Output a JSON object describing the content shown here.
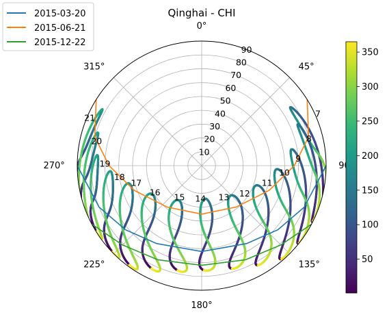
{
  "chart_data": {
    "type": "polar-analemma",
    "title": "Qinghai - CHI",
    "theta_direction": "clockwise",
    "theta_zero": "N",
    "angle_tick_labels": [
      "0°",
      "45°",
      "90°",
      "135°",
      "180°",
      "225°",
      "270°",
      "315°"
    ],
    "radial_tick_labels": [
      "10",
      "20",
      "30",
      "40",
      "50",
      "60",
      "70",
      "80",
      "90"
    ],
    "rlim": [
      0,
      90
    ],
    "grid": true,
    "legend": {
      "position": "top-left",
      "entries": [
        {
          "label": "2015-03-20",
          "color": "#1f77b4"
        },
        {
          "label": "2015-06-21",
          "color": "#ff7f0e"
        },
        {
          "label": "2015-12-22",
          "color": "#2ca02c"
        }
      ]
    },
    "day_paths": [
      {
        "name": "2015-03-20",
        "color": "#1f77b4",
        "points": [
          [
            90,
            90
          ],
          [
            112,
            80
          ],
          [
            130,
            72
          ],
          [
            150,
            65
          ],
          [
            180,
            62
          ],
          [
            210,
            65
          ],
          [
            230,
            72
          ],
          [
            248,
            80
          ],
          [
            270,
            90
          ]
        ]
      },
      {
        "name": "2015-06-21",
        "color": "#ff7f0e",
        "points": [
          [
            58,
            90
          ],
          [
            75,
            80
          ],
          [
            90,
            67
          ],
          [
            110,
            52
          ],
          [
            140,
            39
          ],
          [
            180,
            35
          ],
          [
            220,
            39
          ],
          [
            250,
            52
          ],
          [
            270,
            67
          ],
          [
            285,
            80
          ],
          [
            302,
            90
          ]
        ]
      },
      {
        "name": "2015-12-22",
        "color": "#2ca02c",
        "points": [
          [
            118,
            90
          ],
          [
            135,
            81
          ],
          [
            155,
            75
          ],
          [
            180,
            72
          ],
          [
            205,
            75
          ],
          [
            225,
            81
          ],
          [
            242,
            90
          ]
        ]
      }
    ],
    "hour_labels": [
      {
        "hour": "7",
        "az": 66,
        "alt": 92
      },
      {
        "hour": "8",
        "az": 76,
        "alt": 80
      },
      {
        "hour": "9",
        "az": 86,
        "alt": 70
      },
      {
        "hour": "10",
        "az": 95,
        "alt": 60
      },
      {
        "hour": "11",
        "az": 105,
        "alt": 49
      },
      {
        "hour": "12",
        "az": 123,
        "alt": 37
      },
      {
        "hour": "13",
        "az": 145,
        "alt": 28
      },
      {
        "hour": "14",
        "az": 182,
        "alt": 24
      },
      {
        "hour": "15",
        "az": 215,
        "alt": 28
      },
      {
        "hour": "16",
        "az": 240,
        "alt": 39
      },
      {
        "hour": "17",
        "az": 255,
        "alt": 49
      },
      {
        "hour": "18",
        "az": 262,
        "alt": 60
      },
      {
        "hour": "19",
        "az": 271,
        "alt": 70
      },
      {
        "hour": "20",
        "az": 283,
        "alt": 78
      },
      {
        "hour": "21",
        "az": 293,
        "alt": 88
      }
    ],
    "analemmas": [
      {
        "hour": "8",
        "top": [
          60,
          76
        ],
        "bottom": [
          103,
          92
        ]
      },
      {
        "hour": "9",
        "top": [
          70,
          75
        ],
        "bottom": [
          115,
          90
        ]
      },
      {
        "hour": "10",
        "top": [
          83,
          65
        ],
        "bottom": [
          127,
          90
        ]
      },
      {
        "hour": "11",
        "top": [
          96,
          53
        ],
        "bottom": [
          138,
          89
        ]
      },
      {
        "hour": "12",
        "top": [
          113,
          41
        ],
        "bottom": [
          149,
          83
        ]
      },
      {
        "hour": "13",
        "top": [
          137,
          30
        ],
        "bottom": [
          162,
          78
        ]
      },
      {
        "hour": "14",
        "top": [
          174,
          24
        ],
        "bottom": [
          177,
          76
        ]
      },
      {
        "hour": "15",
        "top": [
          213,
          30
        ],
        "bottom": [
          191,
          78
        ]
      },
      {
        "hour": "16",
        "top": [
          238,
          41
        ],
        "bottom": [
          204,
          83
        ]
      },
      {
        "hour": "17",
        "top": [
          253,
          53
        ],
        "bottom": [
          214,
          89
        ]
      },
      {
        "hour": "18",
        "top": [
          263,
          65
        ],
        "bottom": [
          224,
          90
        ]
      },
      {
        "hour": "19",
        "top": [
          272,
          75
        ],
        "bottom": [
          236,
          90
        ]
      },
      {
        "hour": "20",
        "top": [
          284,
          78
        ],
        "bottom": [
          246,
          92
        ]
      },
      {
        "hour": "21",
        "top": [
          296,
          82
        ],
        "bottom": [
          257,
          92
        ]
      }
    ],
    "colorbar": {
      "label": "",
      "colormap": "viridis",
      "range": [
        1,
        365
      ],
      "tick_labels": [
        "50",
        "100",
        "150",
        "200",
        "250",
        "300",
        "350"
      ],
      "tick_values": [
        50,
        100,
        150,
        200,
        250,
        300,
        350
      ]
    }
  }
}
